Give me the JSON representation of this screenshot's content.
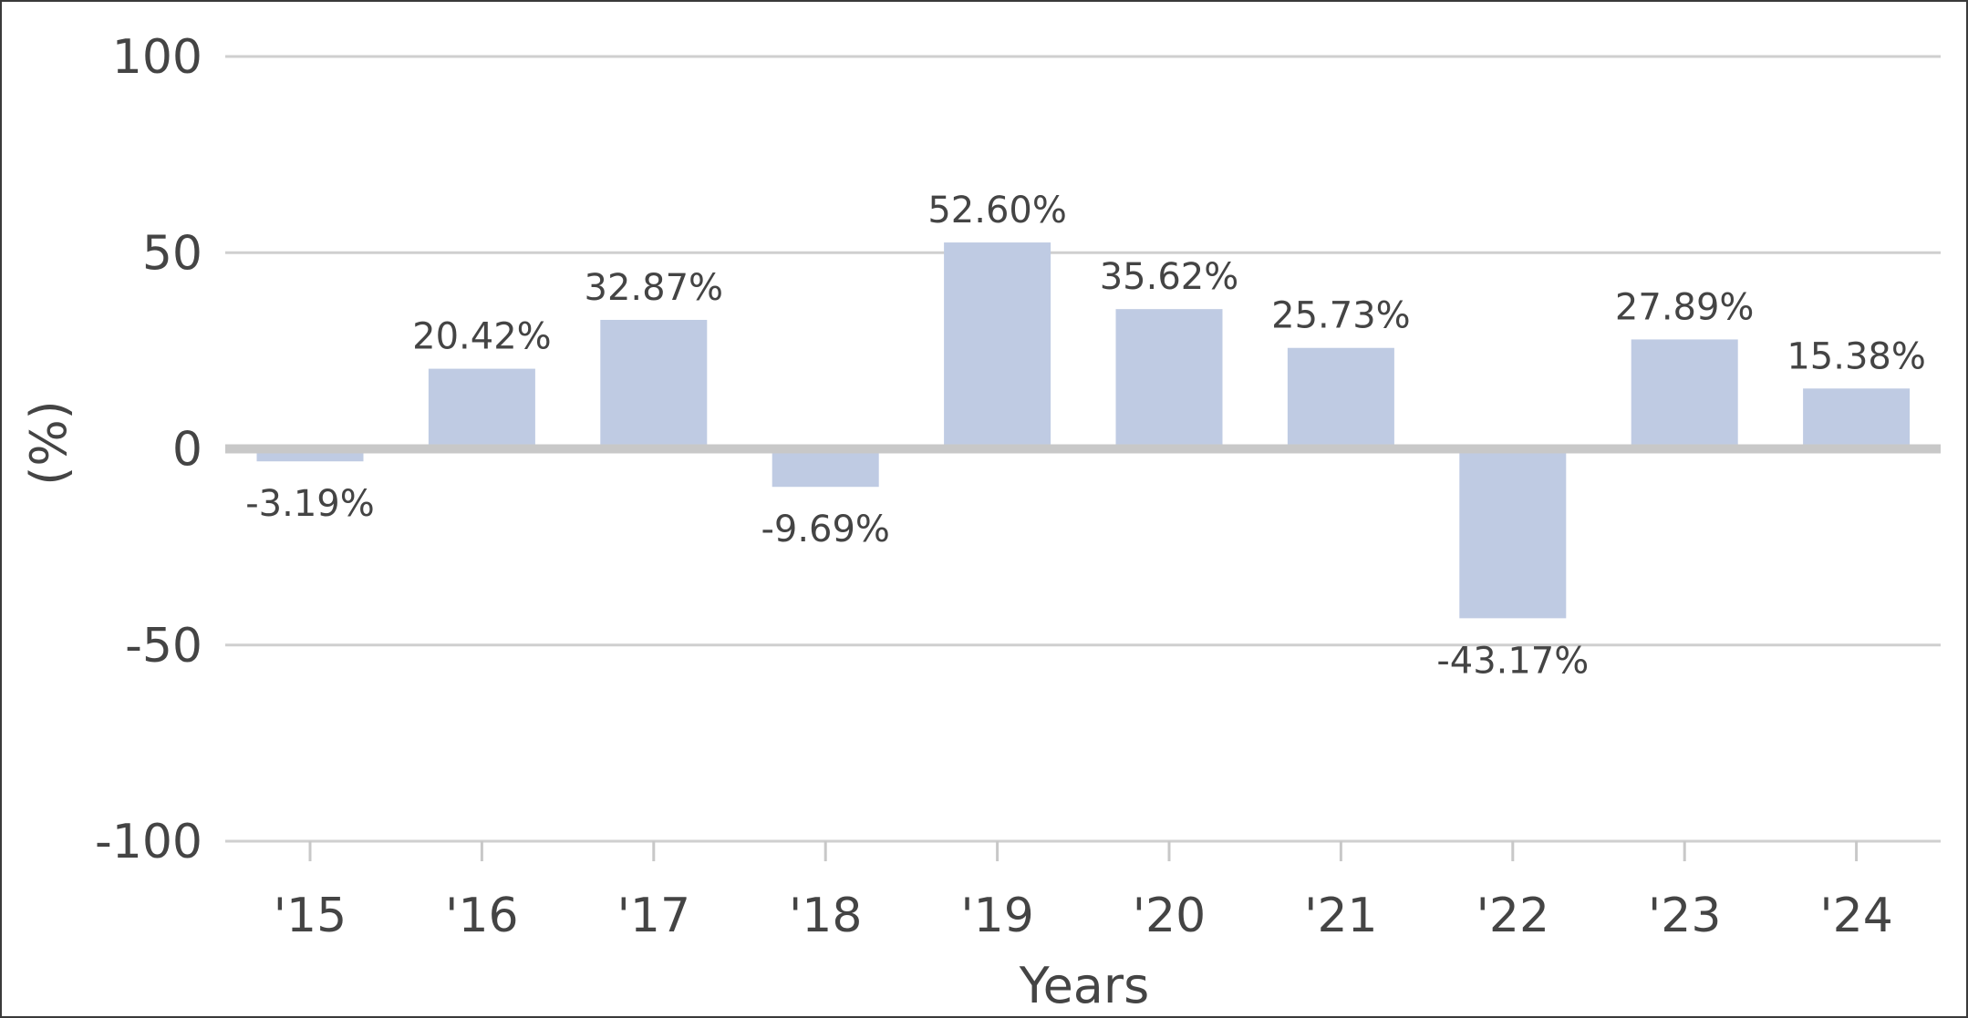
{
  "chart_data": {
    "type": "bar",
    "categories": [
      "'15",
      "'16",
      "'17",
      "'18",
      "'19",
      "'20",
      "'21",
      "'22",
      "'23",
      "'24"
    ],
    "series": [
      {
        "values": [
          -3.19,
          20.42,
          32.87,
          -9.69,
          52.6,
          35.62,
          25.73,
          -43.17,
          27.89,
          15.38
        ],
        "labels": [
          "-3.19%",
          "20.42%",
          "32.87%",
          "-9.69%",
          "52.60%",
          "35.62%",
          "25.73%",
          "-43.17%",
          "27.89%",
          "15.38%"
        ]
      }
    ],
    "xlabel": "Years",
    "ylabel": "(%)",
    "ylim": [
      -100,
      100
    ],
    "yticks": [
      100,
      50,
      0,
      -50,
      -100
    ],
    "ytick_labels": [
      "100",
      "50",
      "0",
      "-50",
      "-100"
    ],
    "grid": true,
    "bar_color": "#bfcbe3"
  }
}
